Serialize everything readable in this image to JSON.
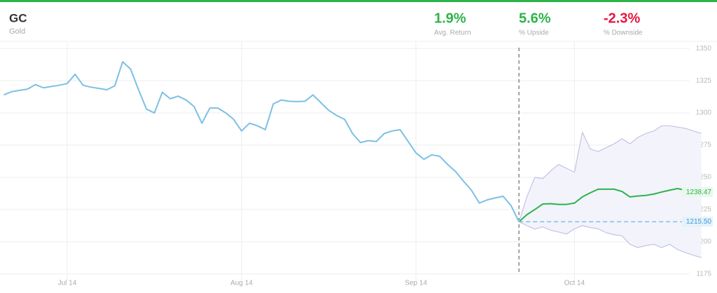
{
  "chart_data": {
    "type": "line",
    "title": "GC",
    "subtitle": "Gold",
    "stats": [
      {
        "value": "1.9%",
        "label": "Avg. Return",
        "color": "#2db34a"
      },
      {
        "value": "5.6%",
        "label": "% Upside",
        "color": "#2db34a"
      },
      {
        "value": "-2.3%",
        "label": "% Downside",
        "color": "#e5173f"
      }
    ],
    "categories": [
      null,
      null,
      null,
      null,
      null,
      null,
      null,
      null,
      "Jul 14",
      null,
      null,
      null,
      null,
      null,
      null,
      null,
      null,
      null,
      null,
      null,
      null,
      null,
      null,
      null,
      null,
      null,
      null,
      null,
      null,
      null,
      "Aug 14",
      null,
      null,
      null,
      null,
      null,
      null,
      null,
      null,
      null,
      null,
      null,
      null,
      null,
      null,
      null,
      null,
      null,
      null,
      null,
      null,
      null,
      "Sep 14",
      null,
      null,
      null,
      null,
      null,
      null,
      null,
      null,
      null,
      null,
      null,
      null,
      null,
      null,
      null,
      null,
      null,
      null,
      null,
      "Oct 14",
      null,
      null,
      null,
      null,
      null,
      null,
      null,
      null,
      null,
      null,
      null,
      null,
      null,
      null,
      null,
      null
    ],
    "series": [
      {
        "color": "#7cc0e4",
        "label_color": "#3d9ad6",
        "label_bg": "#e4f2fb",
        "values": [
          1314,
          1316.5,
          1317.5,
          1318.5,
          1322,
          1319.5,
          1320.5,
          1321.5,
          1322.8,
          1330,
          1321.5,
          1320,
          1319,
          1318,
          1321,
          1339.7,
          1334,
          1318,
          1303,
          1300,
          1316,
          1311,
          1313,
          1310,
          1305,
          1292,
          1303.8,
          1303.8,
          1300,
          1295,
          1286,
          1292,
          1290,
          1287,
          1307,
          1310,
          1309,
          1308.8,
          1309,
          1314,
          1308,
          1302,
          1298,
          1295,
          1284,
          1277,
          1278.5,
          1277.8,
          1284,
          1286,
          1287,
          1278,
          1269,
          1264,
          1267.5,
          1266.3,
          1260,
          1254.5,
          1247,
          1240,
          1230,
          1232.5,
          1234,
          1235.3,
          1228,
          1215.5,
          null,
          null,
          null,
          null,
          null,
          null,
          null,
          null,
          null,
          null,
          null,
          null,
          null,
          null,
          null,
          null,
          null,
          null,
          null,
          null,
          null,
          null,
          null
        ],
        "value_labels": [
          null,
          null,
          null,
          null,
          null,
          null,
          null,
          null,
          null,
          null,
          null,
          null,
          null,
          null,
          null,
          null,
          null,
          null,
          null,
          null,
          null,
          null,
          null,
          null,
          null,
          null,
          null,
          null,
          null,
          null,
          null,
          null,
          null,
          null,
          null,
          null,
          null,
          null,
          null,
          null,
          null,
          null,
          null,
          null,
          null,
          null,
          null,
          null,
          null,
          null,
          null,
          null,
          null,
          null,
          null,
          null,
          null,
          null,
          null,
          null,
          null,
          null,
          null,
          null,
          null,
          "1215.50",
          null,
          null,
          null,
          null,
          null,
          null,
          null,
          null,
          null,
          null,
          null,
          null,
          null,
          null,
          null,
          null,
          null,
          null,
          null,
          null,
          null,
          null,
          null
        ]
      },
      {
        "color": "#2db34a",
        "label_color": "#2db34a",
        "label_bg": "#e9f7ec",
        "values": [
          null,
          null,
          null,
          null,
          null,
          null,
          null,
          null,
          null,
          null,
          null,
          null,
          null,
          null,
          null,
          null,
          null,
          null,
          null,
          null,
          null,
          null,
          null,
          null,
          null,
          null,
          null,
          null,
          null,
          null,
          null,
          null,
          null,
          null,
          null,
          null,
          null,
          null,
          null,
          null,
          null,
          null,
          null,
          null,
          null,
          null,
          null,
          null,
          null,
          null,
          null,
          null,
          null,
          null,
          null,
          null,
          null,
          null,
          null,
          null,
          null,
          null,
          null,
          null,
          null,
          1215.5,
          1221,
          1225,
          1229.3,
          1229.5,
          1229,
          1229,
          1230,
          1234.8,
          1238,
          1240.8,
          1240.8,
          1240.8,
          1239,
          1234.8,
          1235.5,
          1236,
          1237,
          1238.6,
          1240,
          1241.3,
          1240,
          1239,
          1238.47
        ],
        "value_labels": [
          null,
          null,
          null,
          null,
          null,
          null,
          null,
          null,
          null,
          null,
          null,
          null,
          null,
          null,
          null,
          null,
          null,
          null,
          null,
          null,
          null,
          null,
          null,
          null,
          null,
          null,
          null,
          null,
          null,
          null,
          null,
          null,
          null,
          null,
          null,
          null,
          null,
          null,
          null,
          null,
          null,
          null,
          null,
          null,
          null,
          null,
          null,
          null,
          null,
          null,
          null,
          null,
          null,
          null,
          null,
          null,
          null,
          null,
          null,
          null,
          null,
          null,
          null,
          null,
          null,
          null,
          null,
          null,
          null,
          null,
          null,
          null,
          null,
          null,
          null,
          null,
          null,
          null,
          null,
          null,
          null,
          null,
          null,
          null,
          null,
          null,
          null,
          null,
          "1238.47"
        ]
      },
      {
        "color": "#c4c2e6",
        "label_color": "#6f6c99",
        "label_bg": "#e9e8f7",
        "values": [
          null,
          null,
          null,
          null,
          null,
          null,
          null,
          null,
          null,
          null,
          null,
          null,
          null,
          null,
          null,
          null,
          null,
          null,
          null,
          null,
          null,
          null,
          null,
          null,
          null,
          null,
          null,
          null,
          null,
          null,
          null,
          null,
          null,
          null,
          null,
          null,
          null,
          null,
          null,
          null,
          null,
          null,
          null,
          null,
          null,
          null,
          null,
          null,
          null,
          null,
          null,
          null,
          null,
          null,
          null,
          null,
          null,
          null,
          null,
          null,
          null,
          null,
          null,
          null,
          null,
          1215.5,
          1235,
          1250,
          1249,
          1255,
          1260,
          1257,
          1254,
          1285,
          1272,
          1270,
          1273,
          1276,
          1280,
          1276,
          1281,
          1284,
          1286,
          1290,
          1290,
          1289,
          1288,
          1286,
          1284.15
        ]
      },
      {
        "color": "#c4c2e6",
        "label_color": "#6f6c99",
        "label_bg": "#e9e8f7",
        "values": [
          null,
          null,
          null,
          null,
          null,
          null,
          null,
          null,
          null,
          null,
          null,
          null,
          null,
          null,
          null,
          null,
          null,
          null,
          null,
          null,
          null,
          null,
          null,
          null,
          null,
          null,
          null,
          null,
          null,
          null,
          null,
          null,
          null,
          null,
          null,
          null,
          null,
          null,
          null,
          null,
          null,
          null,
          null,
          null,
          null,
          null,
          null,
          null,
          null,
          null,
          null,
          null,
          null,
          null,
          null,
          null,
          null,
          null,
          null,
          null,
          null,
          null,
          null,
          null,
          null,
          1215.5,
          1212.5,
          1209.8,
          1211.5,
          1209,
          1207.5,
          1206,
          1210,
          1212.5,
          1211,
          1210,
          1207,
          1205.5,
          1204.5,
          1198,
          1195.5,
          1197,
          1198,
          1195.5,
          1198,
          1194,
          1191.5,
          1189.5,
          1187.72
        ]
      }
    ],
    "ylim": [
      1170,
      1355
    ],
    "yticks": [
      1175,
      1200,
      1225,
      1250,
      1275,
      1300,
      1325,
      1350
    ],
    "grid": true
  }
}
